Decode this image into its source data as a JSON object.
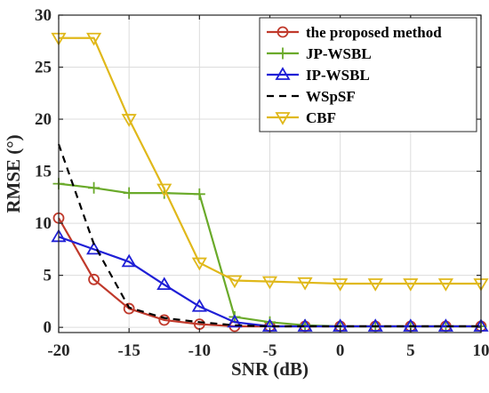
{
  "chart_data": {
    "type": "line",
    "xlabel": "SNR (dB)",
    "ylabel": "RMSE (°)",
    "xlim": [
      -20,
      10
    ],
    "ylim": [
      -0.5,
      30
    ],
    "x_ticks": [
      -20,
      -15,
      -10,
      -5,
      0,
      5,
      10
    ],
    "y_ticks": [
      0,
      5,
      10,
      15,
      20,
      25,
      30
    ],
    "x_tick_labels": [
      "-20",
      "-15",
      "-10",
      "-5",
      "0",
      "5",
      "10"
    ],
    "y_tick_labels": [
      "0",
      "5",
      "10",
      "15",
      "20",
      "25",
      "30"
    ],
    "grid": true,
    "legend_position": "top-right",
    "series": [
      {
        "name": "the proposed method",
        "color": "#c0392b",
        "marker": "circle",
        "line": "solid",
        "x": [
          -20,
          -17.5,
          -15,
          -12.5,
          -10,
          -7.5,
          -5,
          -2.5,
          0,
          2.5,
          5,
          7.5,
          10
        ],
        "y": [
          10.5,
          4.6,
          1.8,
          0.7,
          0.3,
          0.1,
          0.1,
          0.1,
          0.1,
          0.1,
          0.1,
          0.1,
          0.1
        ]
      },
      {
        "name": "JP-WSBL",
        "color": "#6aaa2a",
        "marker": "plus",
        "line": "solid",
        "x": [
          -20,
          -17.5,
          -15,
          -12.5,
          -10,
          -7.5,
          -5,
          -2.5,
          0,
          2.5,
          5,
          7.5,
          10
        ],
        "y": [
          13.8,
          13.4,
          12.9,
          12.9,
          12.8,
          1.0,
          0.5,
          0.2,
          0.1,
          0.1,
          0.1,
          0.1,
          0.1
        ]
      },
      {
        "name": "IP-WSBL",
        "color": "#1f1fd6",
        "marker": "triangle-up",
        "line": "solid",
        "x": [
          -20,
          -17.5,
          -15,
          -12.5,
          -10,
          -7.5,
          -5,
          -2.5,
          0,
          2.5,
          5,
          7.5,
          10
        ],
        "y": [
          8.7,
          7.5,
          6.3,
          4.1,
          2.0,
          0.5,
          0.1,
          0.1,
          0.1,
          0.1,
          0.1,
          0.1,
          0.1
        ]
      },
      {
        "name": "WSpSF",
        "color": "#000000",
        "marker": "none",
        "line": "dashed",
        "x": [
          -20,
          -17.5,
          -15,
          -12.5,
          -10,
          -7.5,
          -5,
          -2.5,
          0,
          2.5,
          5,
          7.5,
          10
        ],
        "y": [
          17.6,
          8.0,
          1.9,
          0.9,
          0.5,
          0.2,
          0.1,
          0.1,
          0.1,
          0.1,
          0.1,
          0.1,
          0.1
        ]
      },
      {
        "name": "CBF",
        "color": "#e0b81a",
        "marker": "triangle-down",
        "line": "solid",
        "x": [
          -20,
          -17.5,
          -15,
          -12.5,
          -10,
          -7.5,
          -5,
          -2.5,
          0,
          2.5,
          5,
          7.5,
          10
        ],
        "y": [
          27.8,
          27.8,
          20.0,
          13.3,
          6.2,
          4.5,
          4.4,
          4.3,
          4.2,
          4.2,
          4.2,
          4.2,
          4.2
        ]
      }
    ]
  }
}
